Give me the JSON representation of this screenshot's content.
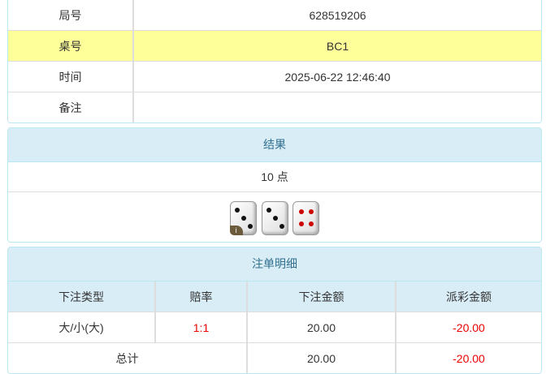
{
  "info": {
    "rows": [
      {
        "label": "局号",
        "value": "628519206"
      },
      {
        "label": "桌号",
        "value": "BC1"
      },
      {
        "label": "时间",
        "value": "2025-06-22 12:46:40"
      },
      {
        "label": "备注",
        "value": ""
      }
    ]
  },
  "result": {
    "title": "结果",
    "points": "10 点",
    "dice": [
      3,
      3,
      4
    ],
    "info_badge": "i"
  },
  "bets": {
    "title": "注单明细",
    "columns": [
      "下注类型",
      "赔率",
      "下注金额",
      "派彩金额"
    ],
    "rows": [
      {
        "type": "大/小(大)",
        "odds": "1:1",
        "amount": "20.00",
        "payout": "-20.00"
      }
    ],
    "total": {
      "label": "总计",
      "amount": "20.00",
      "payout": "-20.00"
    }
  },
  "colors": {
    "header_bg": "#d9edf7",
    "highlight": "#ffff99",
    "negative": "#ee0000"
  }
}
